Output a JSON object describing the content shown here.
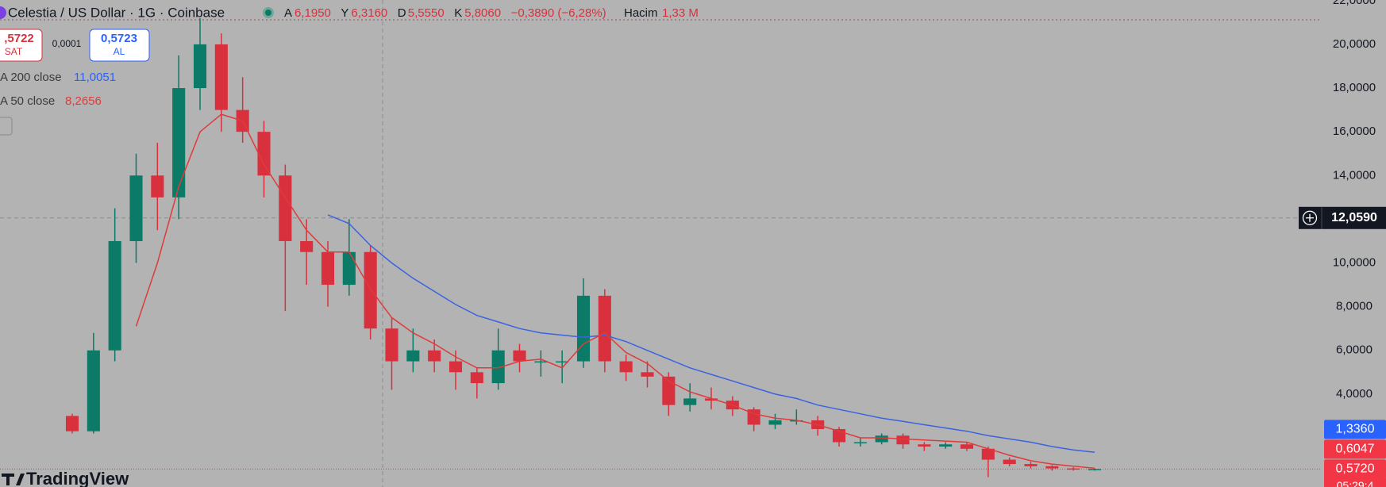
{
  "header": {
    "symbol": "Celestia / US Dollar · 1G · Coinbase",
    "ohlc": [
      {
        "key": "A",
        "value": "6,1950"
      },
      {
        "key": "Y",
        "value": "6,3160"
      },
      {
        "key": "D",
        "value": "5,5550"
      },
      {
        "key": "K",
        "value": "5,8060"
      }
    ],
    "change": "−0,3890 (−6,28%)",
    "volume_key": "Hacim",
    "volume": "1,33 M"
  },
  "trade": {
    "sell_price": ",5722",
    "sell_label": "SAT",
    "spread": "0,0001",
    "buy_price": "0,5723",
    "buy_label": "AL"
  },
  "indicators": [
    {
      "name": "A 200 close",
      "value": "11,0051"
    },
    {
      "name": "A 50 close",
      "value": "8,2656"
    }
  ],
  "brand": "TradingView",
  "chart_data": {
    "type": "candlestick",
    "up_color": "#0b7a66",
    "down_color": "#d8313d",
    "open": [
      3.0,
      2.3,
      6,
      11,
      14,
      13,
      18,
      20,
      17,
      16,
      14,
      11,
      10.5,
      9,
      10.5,
      7,
      5.5,
      6,
      5.5,
      5,
      4.5,
      6,
      5.5,
      5.5,
      5.5,
      8.5,
      5.5,
      5,
      4.8,
      3.5,
      3.8,
      3.7,
      3.3,
      2.6,
      2.8,
      2.8,
      2.4,
      1.8,
      1.8,
      2.1,
      1.7,
      1.6,
      1.7,
      1.5,
      1,
      0.8,
      0.7,
      0.6,
      0.55
    ],
    "high": [
      3.1,
      6.8,
      12.5,
      15,
      15.5,
      19.5,
      21.2,
      20.5,
      18.5,
      16.5,
      14.5,
      12,
      11,
      12,
      10.8,
      7.5,
      7,
      6.5,
      6,
      5.2,
      7,
      6.3,
      6,
      6,
      9.3,
      8.8,
      5.8,
      5.5,
      5,
      4.5,
      4.3,
      3.9,
      3.4,
      3.1,
      3.3,
      3.0,
      2.5,
      2.0,
      2.2,
      2.2,
      1.8,
      1.8,
      1.8,
      1.6,
      1.1,
      0.9,
      0.75,
      0.65,
      0.6
    ],
    "low": [
      2.2,
      2.2,
      5.5,
      10,
      11.5,
      12,
      17,
      16,
      15.5,
      13,
      7.8,
      9,
      8,
      8.5,
      6.5,
      4.2,
      5,
      5,
      4.2,
      3.8,
      4.2,
      5,
      4.8,
      4.5,
      5.2,
      5,
      4.6,
      4.3,
      3.0,
      3.2,
      3.3,
      3.0,
      2.3,
      2.4,
      2.6,
      2.1,
      1.6,
      1.6,
      1.7,
      1.5,
      1.4,
      1.5,
      1.4,
      0.2,
      0.7,
      0.6,
      0.5,
      0.5,
      0.5
    ],
    "close": [
      2.3,
      6,
      11,
      14,
      13,
      18,
      20,
      17,
      16,
      14,
      11,
      10.5,
      9,
      10.5,
      7,
      5.5,
      6,
      5.5,
      5,
      4.5,
      6,
      5.5,
      5.5,
      5.5,
      8.5,
      5.5,
      5,
      4.8,
      3.5,
      3.8,
      3.7,
      3.3,
      2.6,
      2.8,
      2.8,
      2.4,
      1.8,
      1.8,
      2.1,
      1.7,
      1.6,
      1.7,
      1.5,
      1,
      0.8,
      0.7,
      0.6,
      0.55,
      0.572
    ],
    "series": [
      {
        "name": "MA 200",
        "color": "#3b63e0",
        "values": [
          null,
          null,
          null,
          null,
          null,
          null,
          null,
          null,
          null,
          null,
          null,
          null,
          12.2,
          11.8,
          10.8,
          10.0,
          9.3,
          8.7,
          8.1,
          7.6,
          7.3,
          7.0,
          6.8,
          6.7,
          6.6,
          6.7,
          6.4,
          6.0,
          5.6,
          5.2,
          4.9,
          4.6,
          4.3,
          4.0,
          3.8,
          3.5,
          3.3,
          3.1,
          2.9,
          2.75,
          2.6,
          2.45,
          2.3,
          2.1,
          1.95,
          1.8,
          1.6,
          1.45,
          1.336
        ]
      },
      {
        "name": "MA 50",
        "color": "#e03a3a",
        "values": [
          null,
          null,
          null,
          7.1,
          10,
          13.5,
          16,
          16.8,
          16.5,
          14.5,
          13,
          11.5,
          10.5,
          10.5,
          8.8,
          7.5,
          6.8,
          6.3,
          5.7,
          5.2,
          5.2,
          5.5,
          5.6,
          5.2,
          6.3,
          6.8,
          5.9,
          5.4,
          4.6,
          4.1,
          3.8,
          3.5,
          3.1,
          2.9,
          2.8,
          2.6,
          2.3,
          2.0,
          2.0,
          1.95,
          1.9,
          1.85,
          1.8,
          1.5,
          1.2,
          0.95,
          0.8,
          0.7,
          0.6047
        ]
      }
    ],
    "ylim": [
      -0.25,
      22.03
    ],
    "yticks": [
      {
        "value": 4,
        "label": "4,0000"
      },
      {
        "value": 6,
        "label": "6,0000"
      },
      {
        "value": 8,
        "label": "8,0000"
      },
      {
        "value": 10,
        "label": "10,0000"
      },
      {
        "value": 12,
        "label": "12,0000"
      },
      {
        "value": 14,
        "label": "14,0000"
      },
      {
        "value": 16,
        "label": "16,0000"
      },
      {
        "value": 18,
        "label": "18,0000"
      },
      {
        "value": 20,
        "label": "20,0000"
      },
      {
        "value": 22,
        "label": "22,0000"
      }
    ],
    "grid": false,
    "crosshair": {
      "value": 12.059,
      "label": "12,0590"
    },
    "price_labels": [
      {
        "value": 0.572,
        "label": "0,5720",
        "color": "#f23645"
      },
      {
        "value": 0.6047,
        "label": "0,6047",
        "color": "#f23645"
      },
      {
        "value": 1.336,
        "label": "1,3360",
        "color": "#2962ff"
      }
    ],
    "countdown": "05:29:4"
  }
}
